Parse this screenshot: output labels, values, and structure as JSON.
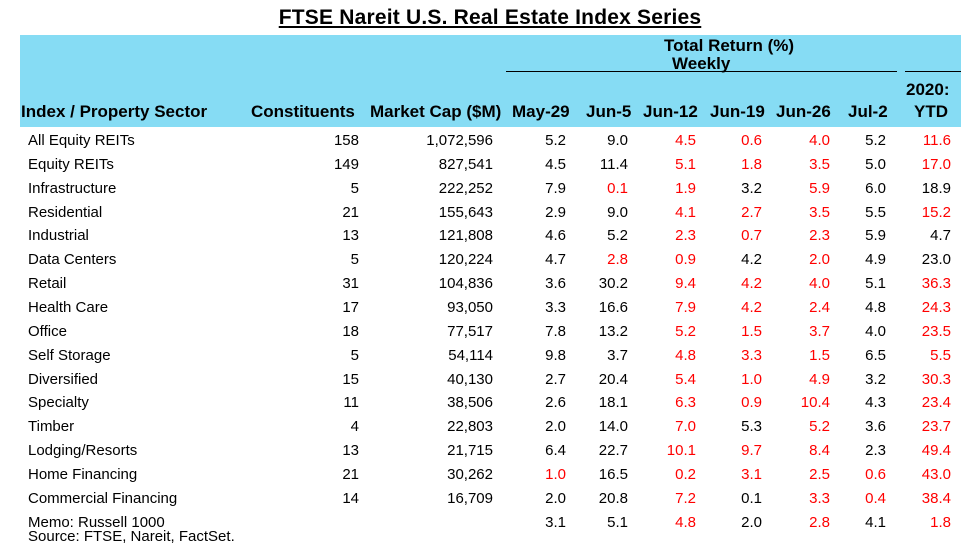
{
  "title": "FTSE Nareit U.S. Real Estate Index Series",
  "header": {
    "total_return": "Total Return (%)",
    "weekly": "Weekly",
    "sector": "Index / Property Sector",
    "constituents": "Constituents",
    "market_cap": "Market Cap ($M)",
    "weeks": [
      "May-29",
      "Jun-5",
      "Jun-12",
      "Jun-19",
      "Jun-26",
      "Jul-2"
    ],
    "ytd_line1": "2020:",
    "ytd_line2": "YTD"
  },
  "colors": {
    "header_bg": "#86dcf4",
    "highlight": "#ff0000"
  },
  "rows": [
    {
      "name": "All Equity REITs",
      "constituents": "158",
      "market_cap": "1,072,596",
      "returns": [
        "5.2",
        "9.0",
        "4.5",
        "0.6",
        "4.0",
        "5.2"
      ],
      "ytd": "11.6",
      "red": [
        false,
        false,
        true,
        true,
        true,
        false
      ],
      "ytd_red": true
    },
    {
      "name": "Equity REITs",
      "constituents": "149",
      "market_cap": "827,541",
      "returns": [
        "4.5",
        "11.4",
        "5.1",
        "1.8",
        "3.5",
        "5.0"
      ],
      "ytd": "17.0",
      "red": [
        false,
        false,
        true,
        true,
        true,
        false
      ],
      "ytd_red": true
    },
    {
      "name": "Infrastructure",
      "constituents": "5",
      "market_cap": "222,252",
      "returns": [
        "7.9",
        "0.1",
        "1.9",
        "3.2",
        "5.9",
        "6.0"
      ],
      "ytd": "18.9",
      "red": [
        false,
        true,
        true,
        false,
        true,
        false
      ],
      "ytd_red": false
    },
    {
      "name": "Residential",
      "constituents": "21",
      "market_cap": "155,643",
      "returns": [
        "2.9",
        "9.0",
        "4.1",
        "2.7",
        "3.5",
        "5.5"
      ],
      "ytd": "15.2",
      "red": [
        false,
        false,
        true,
        true,
        true,
        false
      ],
      "ytd_red": true
    },
    {
      "name": "Industrial",
      "constituents": "13",
      "market_cap": "121,808",
      "returns": [
        "4.6",
        "5.2",
        "2.3",
        "0.7",
        "2.3",
        "5.9"
      ],
      "ytd": "4.7",
      "red": [
        false,
        false,
        true,
        true,
        true,
        false
      ],
      "ytd_red": false
    },
    {
      "name": "Data Centers",
      "constituents": "5",
      "market_cap": "120,224",
      "returns": [
        "4.7",
        "2.8",
        "0.9",
        "4.2",
        "2.0",
        "4.9"
      ],
      "ytd": "23.0",
      "red": [
        false,
        true,
        true,
        false,
        true,
        false
      ],
      "ytd_red": false
    },
    {
      "name": "Retail",
      "constituents": "31",
      "market_cap": "104,836",
      "returns": [
        "3.6",
        "30.2",
        "9.4",
        "4.2",
        "4.0",
        "5.1"
      ],
      "ytd": "36.3",
      "red": [
        false,
        false,
        true,
        true,
        true,
        false
      ],
      "ytd_red": true
    },
    {
      "name": "Health Care",
      "constituents": "17",
      "market_cap": "93,050",
      "returns": [
        "3.3",
        "16.6",
        "7.9",
        "4.2",
        "2.4",
        "4.8"
      ],
      "ytd": "24.3",
      "red": [
        false,
        false,
        true,
        true,
        true,
        false
      ],
      "ytd_red": true
    },
    {
      "name": "Office",
      "constituents": "18",
      "market_cap": "77,517",
      "returns": [
        "7.8",
        "13.2",
        "5.2",
        "1.5",
        "3.7",
        "4.0"
      ],
      "ytd": "23.5",
      "red": [
        false,
        false,
        true,
        true,
        true,
        false
      ],
      "ytd_red": true
    },
    {
      "name": "Self Storage",
      "constituents": "5",
      "market_cap": "54,114",
      "returns": [
        "9.8",
        "3.7",
        "4.8",
        "3.3",
        "1.5",
        "6.5"
      ],
      "ytd": "5.5",
      "red": [
        false,
        false,
        true,
        true,
        true,
        false
      ],
      "ytd_red": true
    },
    {
      "name": "Diversified",
      "constituents": "15",
      "market_cap": "40,130",
      "returns": [
        "2.7",
        "20.4",
        "5.4",
        "1.0",
        "4.9",
        "3.2"
      ],
      "ytd": "30.3",
      "red": [
        false,
        false,
        true,
        true,
        true,
        false
      ],
      "ytd_red": true
    },
    {
      "name": "Specialty",
      "constituents": "11",
      "market_cap": "38,506",
      "returns": [
        "2.6",
        "18.1",
        "6.3",
        "0.9",
        "10.4",
        "4.3"
      ],
      "ytd": "23.4",
      "red": [
        false,
        false,
        true,
        true,
        true,
        false
      ],
      "ytd_red": true
    },
    {
      "name": "Timber",
      "constituents": "4",
      "market_cap": "22,803",
      "returns": [
        "2.0",
        "14.0",
        "7.0",
        "5.3",
        "5.2",
        "3.6"
      ],
      "ytd": "23.7",
      "red": [
        false,
        false,
        true,
        false,
        true,
        false
      ],
      "ytd_red": true
    },
    {
      "name": "Lodging/Resorts",
      "constituents": "13",
      "market_cap": "21,715",
      "returns": [
        "6.4",
        "22.7",
        "10.1",
        "9.7",
        "8.4",
        "2.3"
      ],
      "ytd": "49.4",
      "red": [
        false,
        false,
        true,
        true,
        true,
        false
      ],
      "ytd_red": true
    },
    {
      "name": "Home Financing",
      "constituents": "21",
      "market_cap": "30,262",
      "returns": [
        "1.0",
        "16.5",
        "0.2",
        "3.1",
        "2.5",
        "0.6"
      ],
      "ytd": "43.0",
      "red": [
        true,
        false,
        true,
        true,
        true,
        true
      ],
      "ytd_red": true
    },
    {
      "name": "Commercial Financing",
      "constituents": "14",
      "market_cap": "16,709",
      "returns": [
        "2.0",
        "20.8",
        "7.2",
        "0.1",
        "3.3",
        "0.4"
      ],
      "ytd": "38.4",
      "red": [
        false,
        false,
        true,
        false,
        true,
        true
      ],
      "ytd_red": true
    },
    {
      "name": "Memo: Russell 1000",
      "constituents": "",
      "market_cap": "",
      "returns": [
        "3.1",
        "5.1",
        "4.8",
        "2.0",
        "2.8",
        "4.1"
      ],
      "ytd": "1.8",
      "red": [
        false,
        false,
        true,
        false,
        true,
        false
      ],
      "ytd_red": true
    }
  ],
  "source": "Source: FTSE, Nareit, FactSet."
}
